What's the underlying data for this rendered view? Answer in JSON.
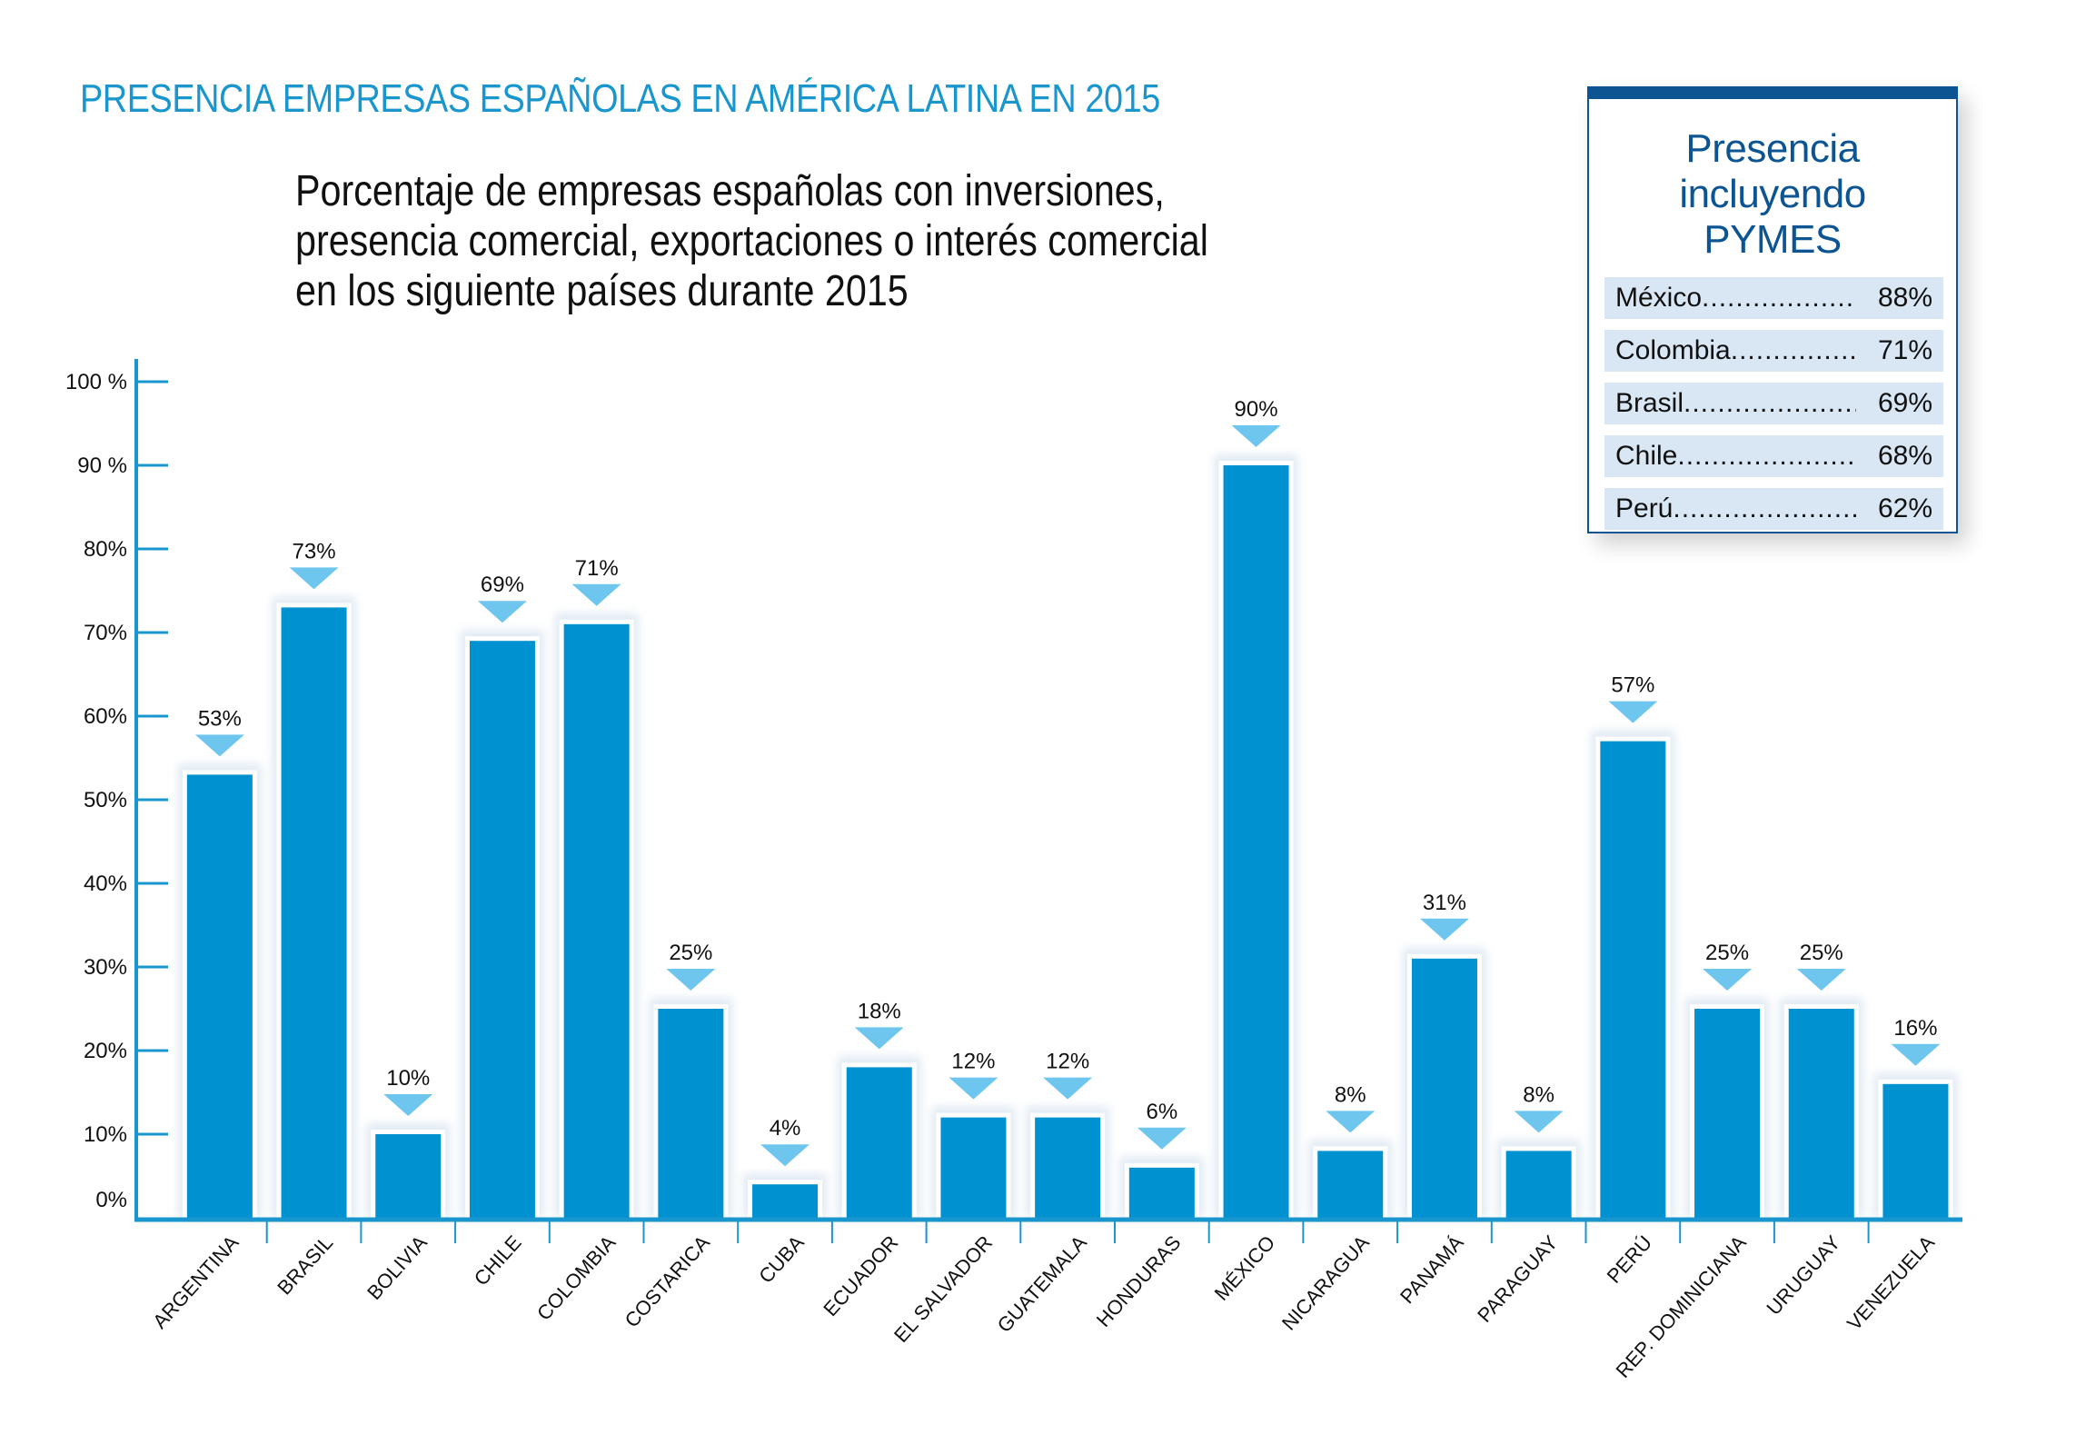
{
  "header": {
    "title": "PRESENCIA EMPRESAS ESPAÑOLAS EN AMÉRICA LATINA EN 2015",
    "subtitle_lines": [
      "Porcentaje de empresas españolas con inversiones,",
      "presencia comercial, exportaciones o interés comercial",
      "en los siguiente países durante 2015"
    ]
  },
  "colors": {
    "title": "#1a96cf",
    "bar": "#0091d0",
    "marker": "#6ec6ee",
    "axis": "#1a96cf",
    "panel": "#0c5592",
    "panel_row_bg": "#d9e6f4"
  },
  "chart_data": {
    "type": "bar",
    "title": "Porcentaje de empresas españolas con inversiones, presencia comercial, exportaciones o interés comercial en los siguiente países durante 2015",
    "xlabel": "",
    "ylabel": "",
    "ylim": [
      0,
      100
    ],
    "yticks": [
      "0%",
      "10%",
      "20%",
      "30%",
      "40%",
      "50%",
      "60%",
      "70%",
      "80%",
      "90 %",
      "100 %"
    ],
    "categories": [
      "ARGENTINA",
      "BRASIL",
      "BOLIVIA",
      "CHILE",
      "COLOMBIA",
      "COSTARICA",
      "CUBA",
      "ECUADOR",
      "EL SALVADOR",
      "GUATEMALA",
      "HONDURAS",
      "MÉXICO",
      "NICARAGUA",
      "PANAMÁ",
      "PARAGUAY",
      "PERÚ",
      "REP. DOMINICIANA",
      "URUGUAY",
      "VENEZUELA"
    ],
    "values": [
      53,
      73,
      10,
      69,
      71,
      25,
      4,
      18,
      12,
      12,
      6,
      90,
      8,
      31,
      8,
      57,
      25,
      25,
      16
    ],
    "labels": [
      "53%",
      "73%",
      "10%",
      "69%",
      "71%",
      "25%",
      "4%",
      "18%",
      "12%",
      "12%",
      "6%",
      "90%",
      "8%",
      "31%",
      "8%",
      "57%",
      "25%",
      "25%",
      "16%"
    ],
    "grid": false,
    "legend": "none"
  },
  "side_panel": {
    "title_line1": "Presencia incluyendo",
    "title_line2": "PYMES",
    "rows": [
      {
        "country": "México",
        "value": "88%"
      },
      {
        "country": "Colombia",
        "value": "71%"
      },
      {
        "country": "Brasil",
        "value": "69%"
      },
      {
        "country": "Chile",
        "value": "68%"
      },
      {
        "country": "Perú",
        "value": "62%"
      }
    ]
  }
}
